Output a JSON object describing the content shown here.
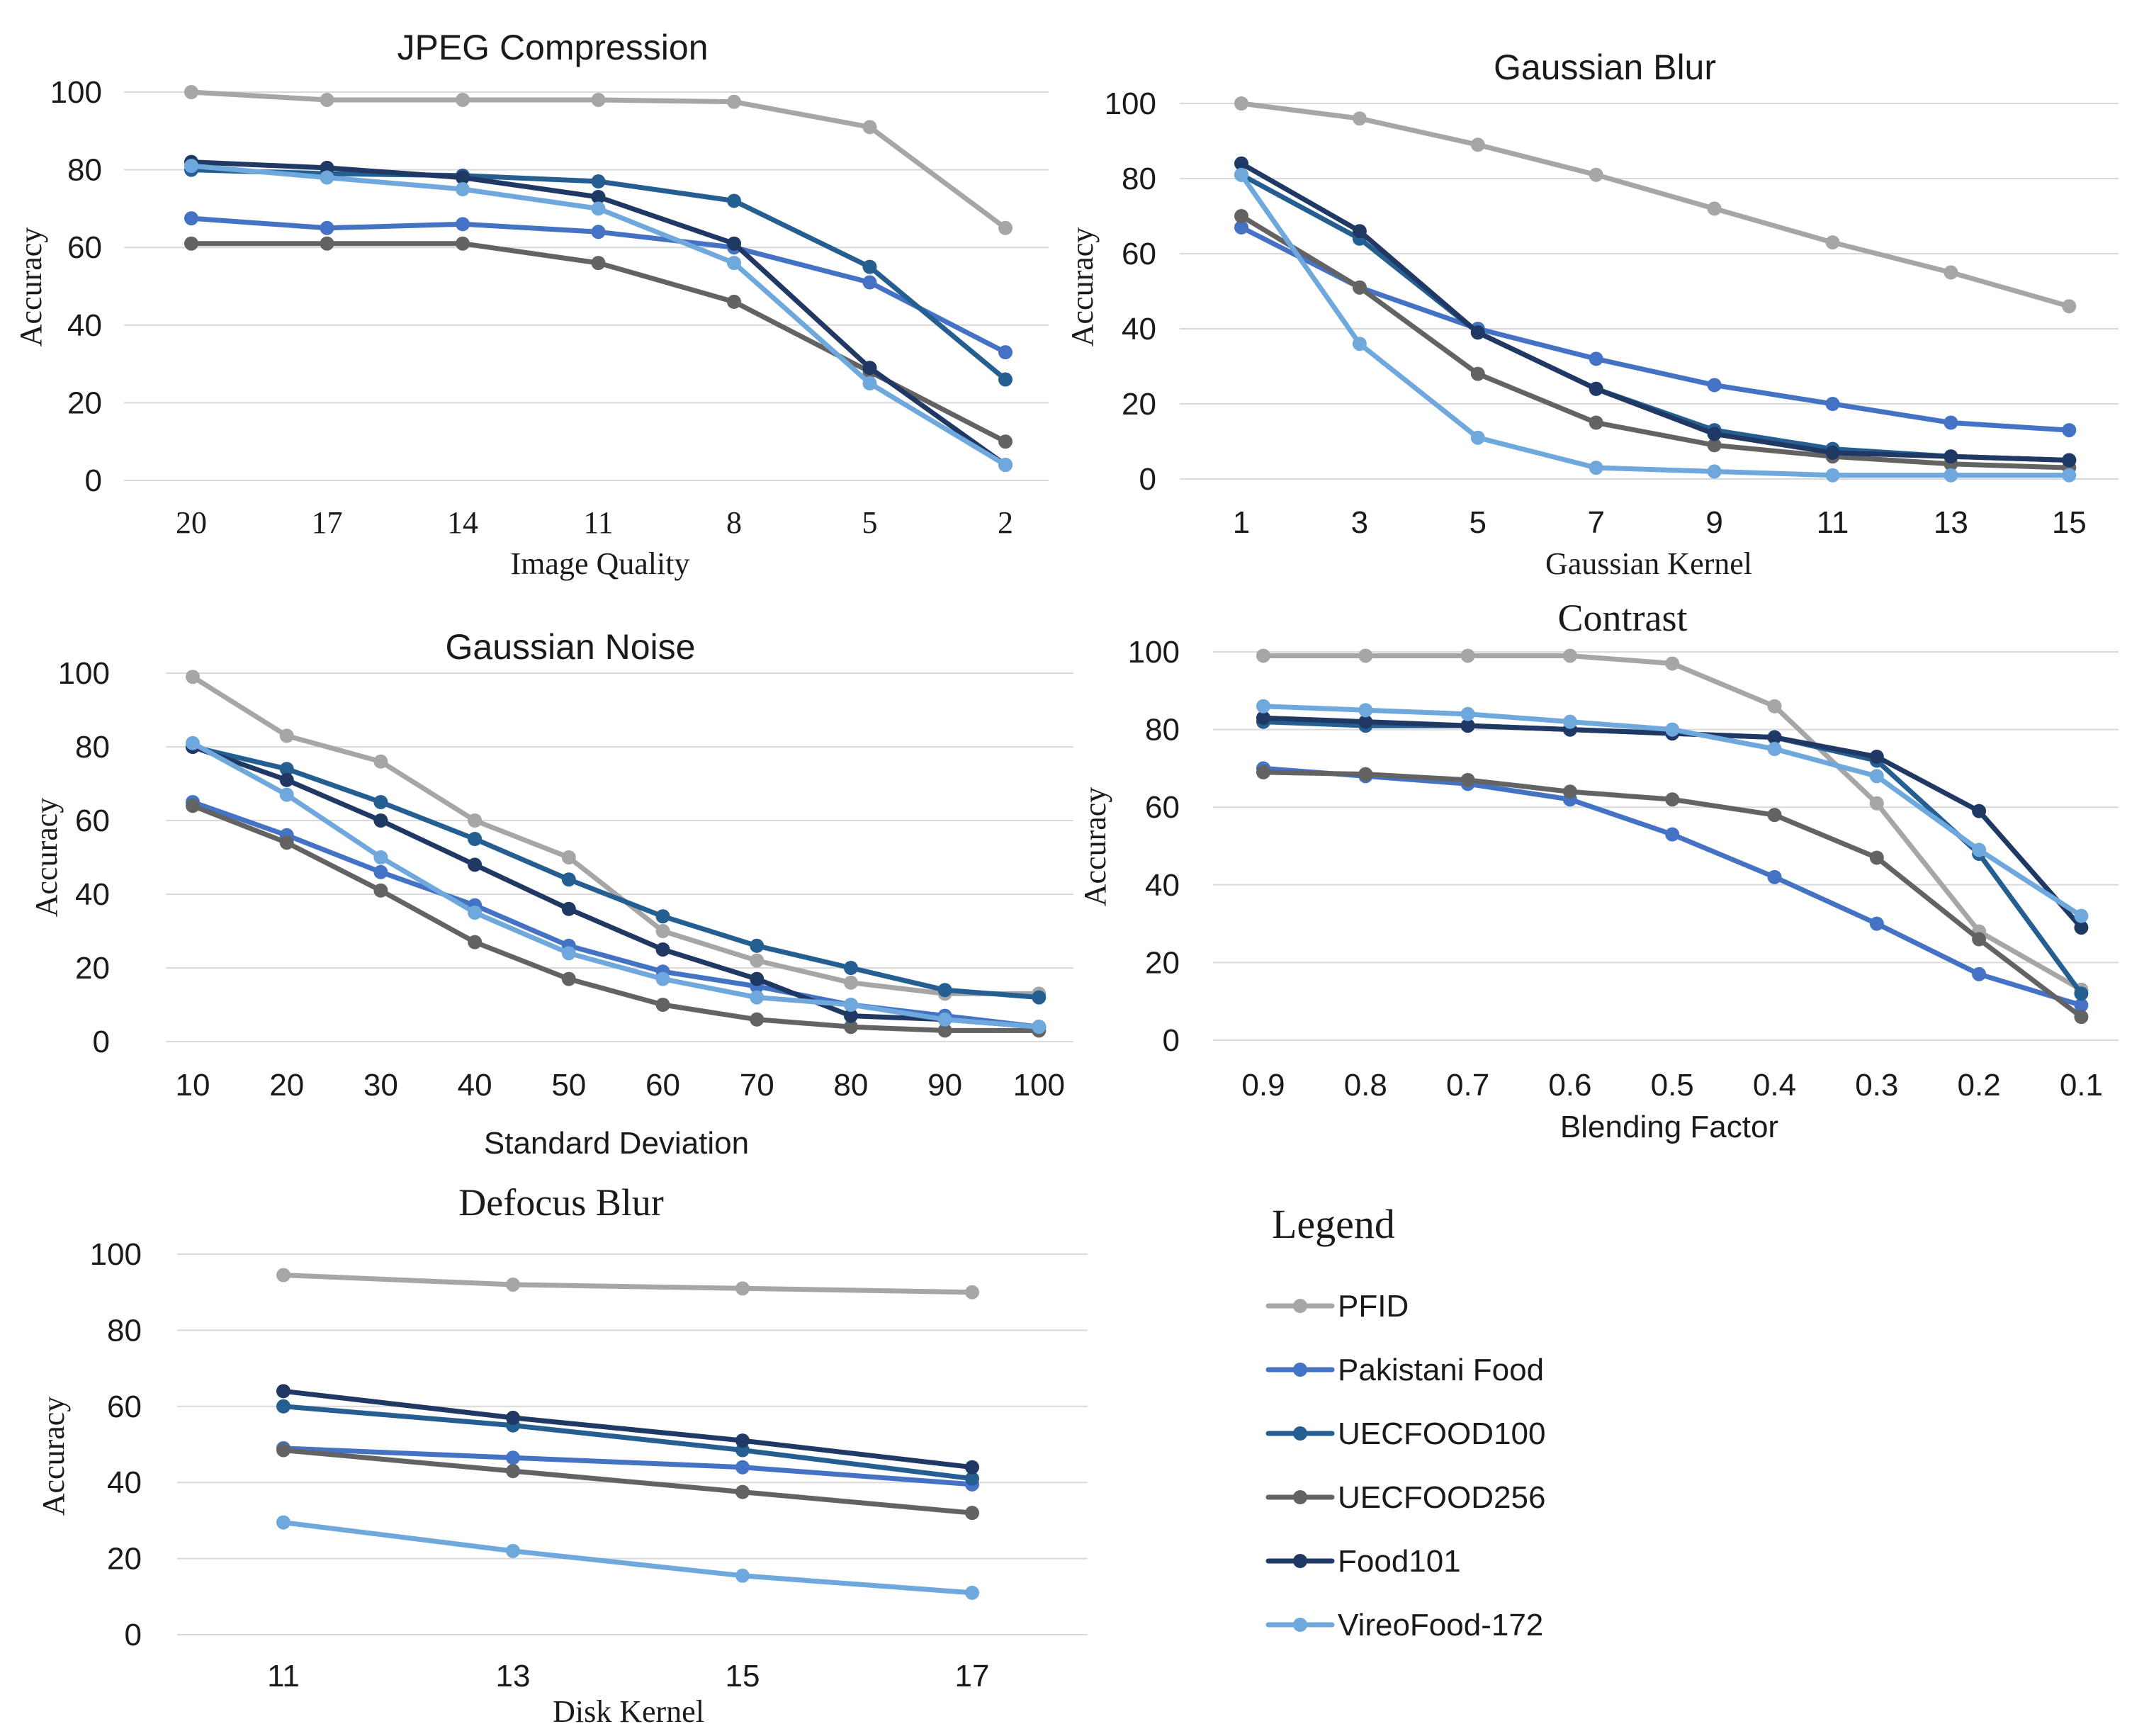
{
  "series_colors": {
    "PFID": "#a6a6a6",
    "Pakistani Food": "#4472c4",
    "UECFOOD100": "#255e91",
    "UECFOOD256": "#636363",
    "Food101": "#203864",
    "VireoFood-172": "#6fa8dc"
  },
  "legend": {
    "title": "Legend",
    "items": [
      "PFID",
      "Pakistani Food",
      "UECFOOD100",
      "UECFOOD256",
      "Food101",
      "VireoFood-172"
    ]
  },
  "chart_data": [
    {
      "id": "jpeg",
      "type": "line",
      "title": "JPEG Compression",
      "xlabel": "Image Quality",
      "ylabel": "Accuracy",
      "ylim": [
        0,
        100
      ],
      "yticks": [
        "0",
        "20",
        "40",
        "60",
        "80",
        "100"
      ],
      "categories": [
        "20",
        "17",
        "14",
        "11",
        "8",
        "5",
        "2"
      ],
      "series": [
        {
          "name": "PFID",
          "values": [
            100,
            98,
            98,
            98,
            97.5,
            91,
            65
          ]
        },
        {
          "name": "Pakistani Food",
          "values": [
            67.5,
            65,
            66,
            64,
            60,
            51,
            33
          ]
        },
        {
          "name": "UECFOOD100",
          "values": [
            80,
            79,
            78.5,
            77,
            72,
            55,
            26
          ]
        },
        {
          "name": "UECFOOD256",
          "values": [
            61,
            61,
            61,
            56,
            46,
            28,
            10
          ]
        },
        {
          "name": "Food101",
          "values": [
            82,
            80.5,
            78,
            73,
            61,
            29,
            4
          ]
        },
        {
          "name": "VireoFood-172",
          "values": [
            81,
            78,
            75,
            70,
            56,
            25,
            4
          ]
        }
      ]
    },
    {
      "id": "gblur",
      "type": "line",
      "title": "Gaussian Blur",
      "xlabel": "Gaussian  Kernel",
      "ylabel": "Accuracy",
      "ylim": [
        0,
        100
      ],
      "yticks": [
        "0",
        "20",
        "40",
        "60",
        "80",
        "100"
      ],
      "categories": [
        "1",
        "3",
        "5",
        "7",
        "9",
        "11",
        "13",
        "15"
      ],
      "series": [
        {
          "name": "PFID",
          "values": [
            100,
            96,
            89,
            81,
            72,
            63,
            55,
            46
          ]
        },
        {
          "name": "Pakistani Food",
          "values": [
            67,
            51,
            40,
            32,
            25,
            20,
            15,
            13
          ]
        },
        {
          "name": "UECFOOD100",
          "values": [
            81,
            64,
            39,
            24,
            13,
            8,
            6,
            5
          ]
        },
        {
          "name": "UECFOOD256",
          "values": [
            70,
            51,
            28,
            15,
            9,
            6,
            4,
            3
          ]
        },
        {
          "name": "Food101",
          "values": [
            84,
            66,
            39,
            24,
            12,
            7,
            6,
            5
          ]
        },
        {
          "name": "VireoFood-172",
          "values": [
            81,
            36,
            11,
            3,
            2,
            1,
            1,
            1
          ]
        }
      ]
    },
    {
      "id": "gnoise",
      "type": "line",
      "title": "Gaussian Noise",
      "xlabel": "Standard Deviation",
      "ylabel": "Accuracy",
      "ylim": [
        0,
        100
      ],
      "yticks": [
        "0",
        "20",
        "40",
        "60",
        "80",
        "100"
      ],
      "categories": [
        "10",
        "20",
        "30",
        "40",
        "50",
        "60",
        "70",
        "80",
        "90",
        "100"
      ],
      "series": [
        {
          "name": "PFID",
          "values": [
            99,
            83,
            76,
            60,
            50,
            30,
            22,
            16,
            13,
            13
          ]
        },
        {
          "name": "Pakistani Food",
          "values": [
            65,
            56,
            46,
            37,
            26,
            19,
            15,
            10,
            7,
            4
          ]
        },
        {
          "name": "UECFOOD100",
          "values": [
            80,
            74,
            65,
            55,
            44,
            34,
            26,
            20,
            14,
            12
          ]
        },
        {
          "name": "UECFOOD256",
          "values": [
            64,
            54,
            41,
            27,
            17,
            10,
            6,
            4,
            3,
            3
          ]
        },
        {
          "name": "Food101",
          "values": [
            80,
            71,
            60,
            48,
            36,
            25,
            17,
            7,
            6,
            4
          ]
        },
        {
          "name": "VireoFood-172",
          "values": [
            81,
            67,
            50,
            35,
            24,
            17,
            12,
            10,
            6,
            4
          ]
        }
      ]
    },
    {
      "id": "contrast",
      "type": "line",
      "title": "Contrast",
      "xlabel": "Blending Factor",
      "ylabel": "Accuracy",
      "ylim": [
        0,
        100
      ],
      "yticks": [
        "0",
        "20",
        "40",
        "60",
        "80",
        "100"
      ],
      "categories": [
        "0.9",
        "0.8",
        "0.7",
        "0.6",
        "0.5",
        "0.4",
        "0.3",
        "0.2",
        "0.1"
      ],
      "series": [
        {
          "name": "PFID",
          "values": [
            99,
            99,
            99,
            99,
            97,
            86,
            61,
            28,
            13
          ]
        },
        {
          "name": "Pakistani Food",
          "values": [
            70,
            68,
            66,
            62,
            53,
            42,
            30,
            17,
            9
          ]
        },
        {
          "name": "UECFOOD100",
          "values": [
            82,
            81,
            81,
            80,
            79,
            78,
            72,
            48,
            12
          ]
        },
        {
          "name": "UECFOOD256",
          "values": [
            69,
            68.5,
            67,
            64,
            62,
            58,
            47,
            26,
            6
          ]
        },
        {
          "name": "Food101",
          "values": [
            83,
            82,
            81,
            80,
            79,
            78,
            73,
            59,
            29
          ]
        },
        {
          "name": "VireoFood-172",
          "values": [
            86,
            85,
            84,
            82,
            80,
            75,
            68,
            49,
            32
          ]
        }
      ]
    },
    {
      "id": "defocus",
      "type": "line",
      "title": "Defocus Blur",
      "xlabel": "Disk  Kernel",
      "ylabel": "Accuracy",
      "ylim": [
        0,
        100
      ],
      "yticks": [
        "0",
        "20",
        "40",
        "60",
        "80",
        "100"
      ],
      "categories": [
        "11",
        "13",
        "15",
        "17"
      ],
      "series": [
        {
          "name": "PFID",
          "values": [
            94.5,
            92,
            91,
            90
          ]
        },
        {
          "name": "Pakistani Food",
          "values": [
            49,
            46.5,
            44,
            39.5
          ]
        },
        {
          "name": "UECFOOD100",
          "values": [
            60,
            55,
            48.5,
            41
          ]
        },
        {
          "name": "UECFOOD256",
          "values": [
            48.5,
            43,
            37.5,
            32
          ]
        },
        {
          "name": "Food101",
          "values": [
            64,
            57,
            51,
            44
          ]
        },
        {
          "name": "VireoFood-172",
          "values": [
            29.5,
            22,
            15.5,
            11
          ]
        }
      ]
    }
  ]
}
